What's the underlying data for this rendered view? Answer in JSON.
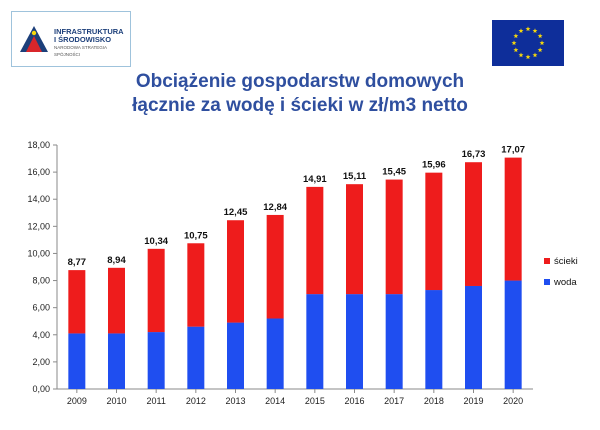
{
  "logo": {
    "line1": "INFRASTRUKTURA",
    "line2": "I ŚRODOWISKO",
    "line3": "NARODOWA STRATEGIA SPÓJNOŚCI"
  },
  "colors": {
    "woda": "#1f4ef0",
    "scieki": "#ee1c1c",
    "title": "#2f4f9f",
    "eu_blue": "#0e2e9a",
    "eu_star": "#f6d80c"
  },
  "chart_data": {
    "type": "bar",
    "stacked": true,
    "title_line1": "Obciążenie gospodarstw domowych",
    "title_line2": "łącznie za wodę i ścieki w zł/m3 netto",
    "categories": [
      "2009",
      "2010",
      "2011",
      "2012",
      "2013",
      "2014",
      "2015",
      "2016",
      "2017",
      "2018",
      "2019",
      "2020"
    ],
    "series": [
      {
        "name": "woda",
        "values": [
          4.1,
          4.1,
          4.2,
          4.6,
          4.9,
          5.2,
          7.0,
          7.0,
          7.0,
          7.3,
          7.6,
          8.0
        ]
      },
      {
        "name": "ścieki",
        "values": [
          4.67,
          4.84,
          6.14,
          6.15,
          7.55,
          7.64,
          7.91,
          8.11,
          8.45,
          8.66,
          9.13,
          9.07
        ]
      }
    ],
    "totals": [
      "8,77",
      "8,94",
      "10,34",
      "10,75",
      "12,45",
      "12,84",
      "14,91",
      "15,11",
      "15,45",
      "15,96",
      "16,73",
      "17,07"
    ],
    "ylim": [
      0,
      18
    ],
    "yticks": [
      "0,00",
      "2,00",
      "4,00",
      "6,00",
      "8,00",
      "10,00",
      "12,00",
      "14,00",
      "16,00",
      "18,00"
    ],
    "legend": [
      "ścieki",
      "woda"
    ],
    "legend_position": "right",
    "grid": false
  }
}
